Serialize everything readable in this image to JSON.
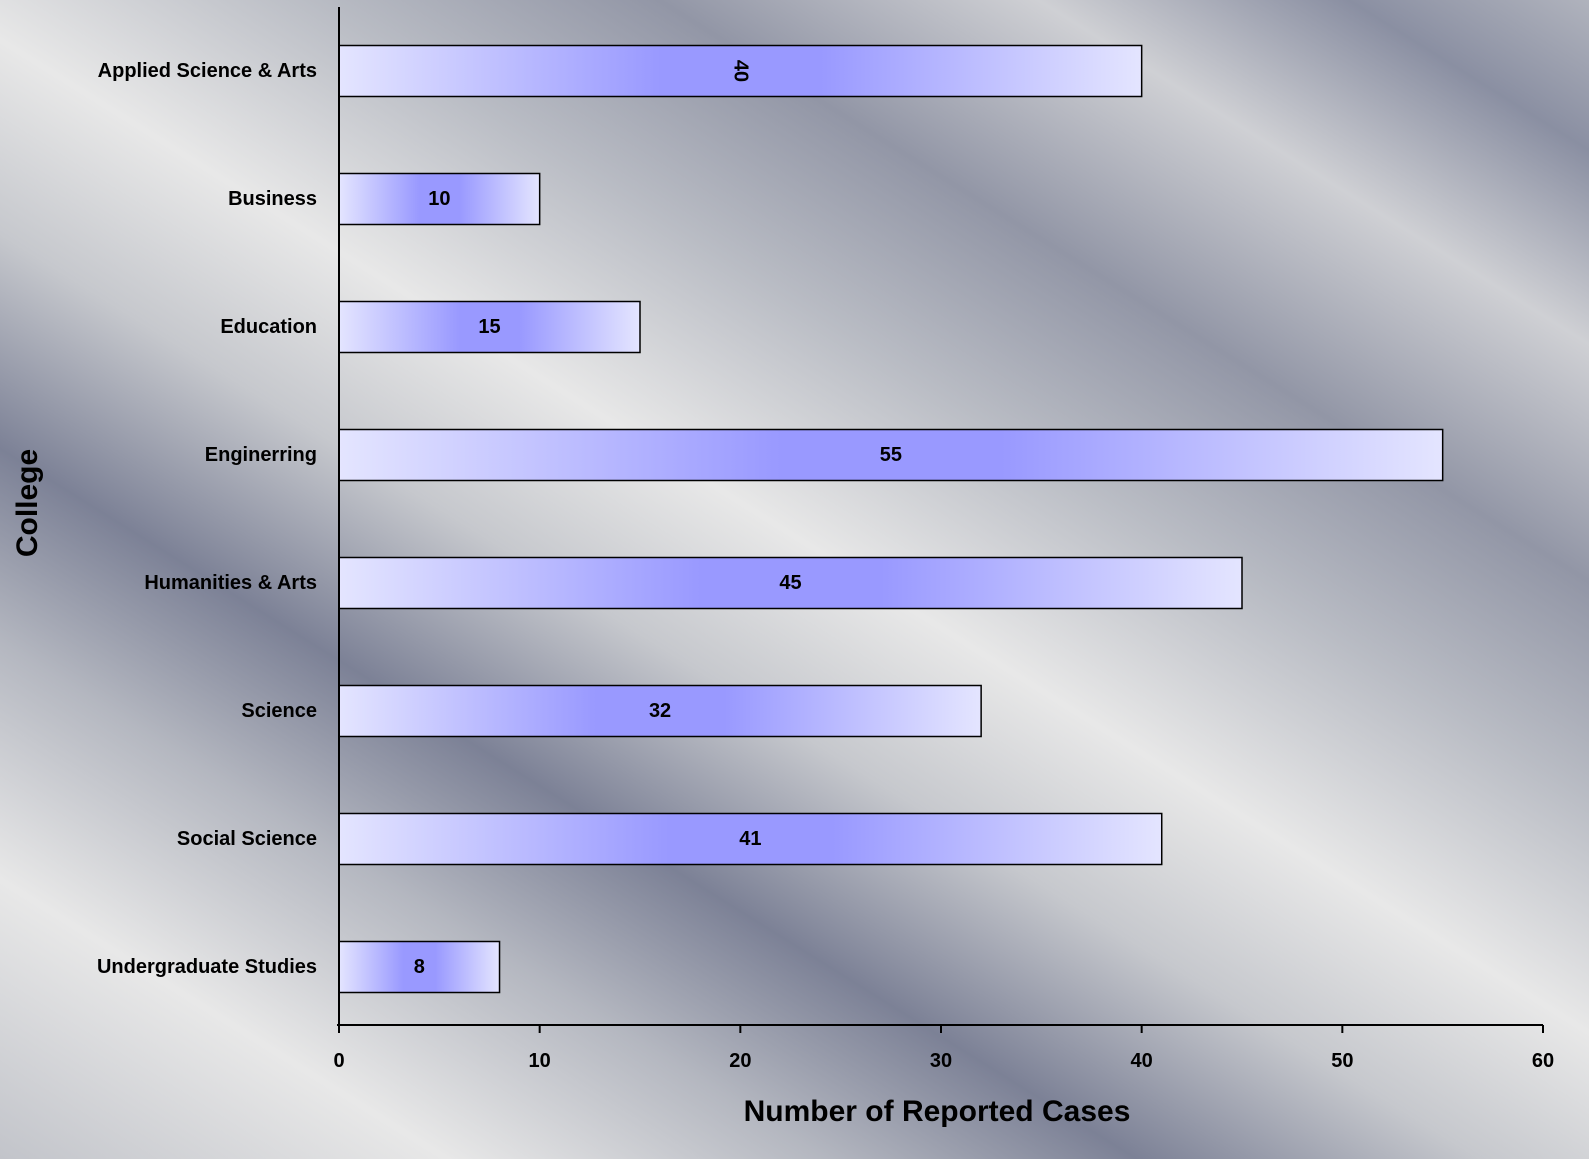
{
  "colors": {
    "bar_edge": "#e4e5ff",
    "bar_center": "#9999ff",
    "bar_outline": "#000000",
    "axis": "#000000"
  },
  "chart_data": {
    "type": "bar",
    "orientation": "horizontal",
    "categories": [
      "Applied Science & Arts",
      "Business",
      "Education",
      "Enginerring",
      "Humanities & Arts",
      "Science",
      "Social Science",
      "Undergraduate Studies"
    ],
    "values": [
      40,
      10,
      15,
      55,
      45,
      32,
      41,
      8
    ],
    "data_labels": [
      "40",
      "10",
      "15",
      "55",
      "45",
      "32",
      "41",
      "8"
    ],
    "xlabel": "Number of Reported Cases",
    "ylabel": "College",
    "xlim": [
      0,
      60
    ],
    "xticks": [
      0,
      10,
      20,
      30,
      40,
      50,
      60
    ],
    "xtick_labels": [
      "0",
      "10",
      "20",
      "30",
      "40",
      "50",
      "60"
    ],
    "grid": false,
    "legend": "none"
  }
}
